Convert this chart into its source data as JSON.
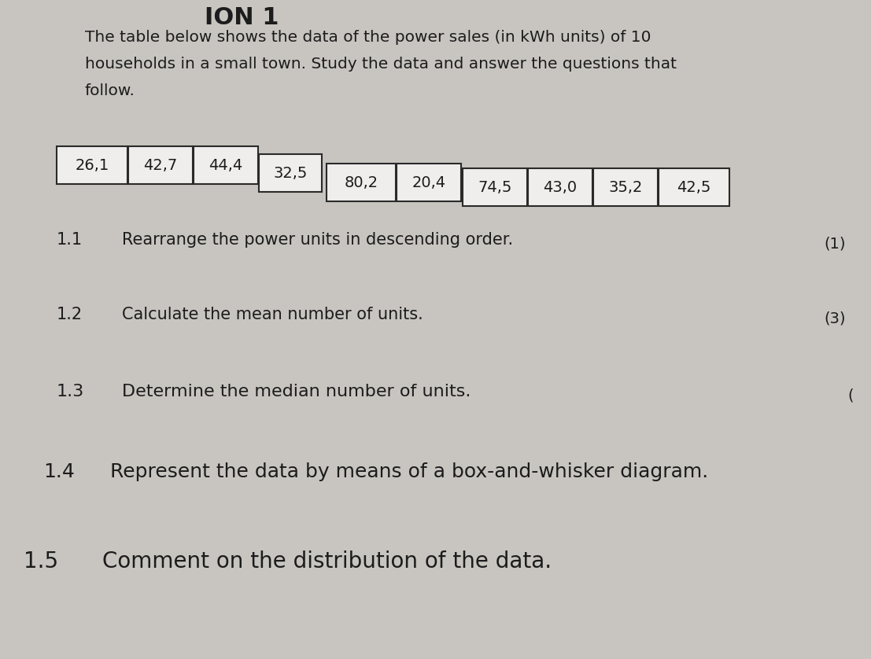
{
  "background_color": "#c8c5c0",
  "page_color": "#dddbd8",
  "text_color": "#1c1c1c",
  "box_fill": "#f0eeec",
  "box_edge": "#2a2a2a",
  "title_line1": "The table below shows the data of the power sales (in kWh units) of 10",
  "title_line2": "households in a small town. Study the data and answer the questions that",
  "title_line3": "follow.",
  "table_values": [
    "26,1",
    "42,7",
    "44,4",
    "32,5",
    "80,2",
    "20,4",
    "74,5",
    "43,0",
    "35,2",
    "42,5"
  ],
  "q1_num": "1.1",
  "q1_text": "Rearrange the power units in descending order.",
  "q1_mark": "(1)",
  "q2_num": "1.2",
  "q2_text": "Calculate the mean number of units.",
  "q2_mark": "(3)",
  "q3_num": "1.3",
  "q3_text": "Determine the median number of units.",
  "q3_mark": "(",
  "q4_num": "1.4",
  "q4_text": "Represent the data by means of a box-and-whisker diagram.",
  "q5_num": "1.5",
  "q5_text": "Comment on the distribution of the data."
}
